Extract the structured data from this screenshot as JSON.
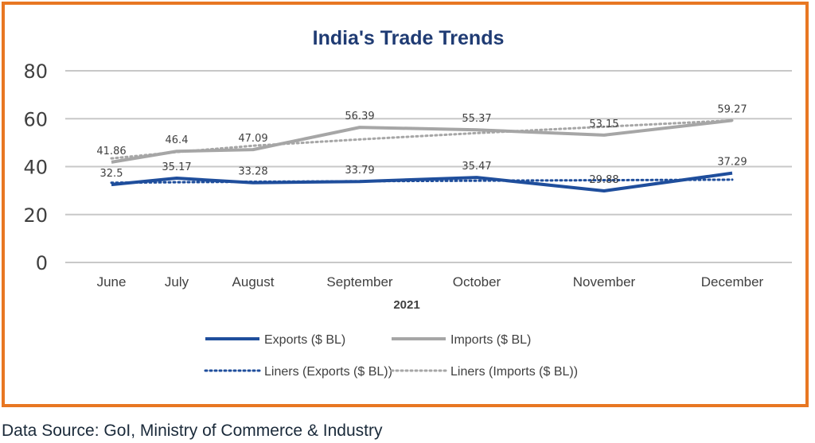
{
  "chart_data": {
    "type": "line",
    "title": "India's Trade Trends",
    "xlabel": "2021",
    "ylabel": "",
    "categories": [
      "June",
      "July",
      "August",
      "September",
      "October",
      "November",
      "December"
    ],
    "ylim": [
      0,
      80
    ],
    "yticks": [
      0,
      20,
      40,
      60,
      80
    ],
    "grid": true,
    "legend_position": "bottom",
    "series": [
      {
        "name": "Exports ($ BL)",
        "values": [
          32.5,
          35.17,
          33.28,
          33.79,
          35.47,
          29.88,
          37.29
        ],
        "color": "#1f4e9c",
        "style": "solid"
      },
      {
        "name": "Imports ($ BL)",
        "values": [
          41.86,
          46.4,
          47.09,
          56.39,
          55.37,
          53.15,
          59.27
        ],
        "color": "#a6a6a6",
        "style": "solid"
      }
    ],
    "trendlines": [
      {
        "name": "Liners (Exports ($ BL))",
        "of": "Exports ($ BL)",
        "type": "linear",
        "color": "#1f4e9c",
        "style": "dotted"
      },
      {
        "name": "Liners (Imports ($ BL))",
        "of": "Imports ($ BL)",
        "type": "linear",
        "color": "#a6a6a6",
        "style": "dotted"
      }
    ]
  },
  "footer": {
    "source": "Data Source: GoI, Ministry of Commerce & Industry"
  }
}
